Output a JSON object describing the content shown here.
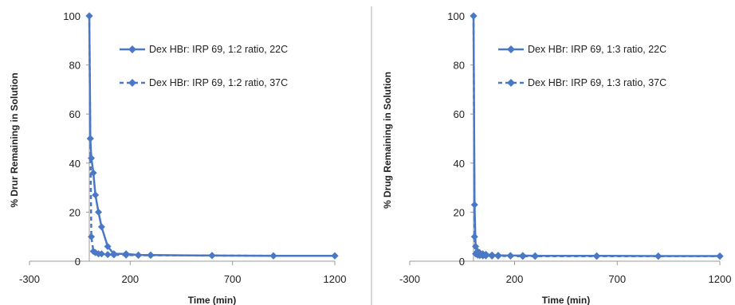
{
  "colors": {
    "series": "#4a78c4",
    "axis": "#999999",
    "divider": "#b0b0b0",
    "text": "#222222"
  },
  "chart_data": [
    {
      "type": "line",
      "xlabel": "Time (min)",
      "ylabel": "% Drur Remaining in Solution",
      "xlim": [
        -300,
        1200
      ],
      "ylim": [
        0,
        100
      ],
      "xticks": [
        -300,
        200,
        700,
        1200
      ],
      "yticks": [
        0,
        20,
        40,
        60,
        80,
        100
      ],
      "grid": false,
      "legend_position": "top-right",
      "series": [
        {
          "name": "Dex HBr: IRP 69, 1:2 ratio, 22C",
          "style": "solid",
          "x": [
            0,
            5,
            10,
            20,
            30,
            45,
            60,
            90,
            120,
            180,
            240,
            300,
            600,
            900,
            1200
          ],
          "y": [
            100,
            50,
            42,
            36,
            27,
            20,
            14,
            6,
            3,
            3,
            2.5,
            2.5,
            2.3,
            2.2,
            2.2
          ]
        },
        {
          "name": "Dex HBr: IRP 69, 1:2 ratio, 37C",
          "style": "dashed",
          "x": [
            0,
            5,
            10,
            20,
            30,
            45,
            60,
            90,
            120,
            180,
            240,
            300,
            600,
            900,
            1200
          ],
          "y": [
            100,
            50,
            10,
            4,
            3.5,
            3,
            3,
            2.7,
            2.6,
            2.5,
            2.4,
            2.4,
            2.3,
            2.2,
            2.2
          ]
        }
      ]
    },
    {
      "type": "line",
      "xlabel": "Time (min)",
      "ylabel": "% Drug Remaining in Solution",
      "xlim": [
        -300,
        1200
      ],
      "ylim": [
        0,
        100
      ],
      "xticks": [
        -300,
        200,
        700,
        1200
      ],
      "yticks": [
        0,
        20,
        40,
        60,
        80,
        100
      ],
      "grid": false,
      "legend_position": "top-right",
      "series": [
        {
          "name": "Dex HBr: IRP 69, 1:3 ratio, 22C",
          "style": "solid",
          "x": [
            0,
            5,
            10,
            20,
            30,
            45,
            60,
            90,
            120,
            180,
            240,
            300,
            600,
            900,
            1200
          ],
          "y": [
            100,
            23,
            6,
            4,
            3.5,
            3,
            2.8,
            2.5,
            2.4,
            2.3,
            2.3,
            2.2,
            2.2,
            2.1,
            2.1
          ]
        },
        {
          "name": "Dex HBr: IRP 69, 1:3 ratio, 37C",
          "style": "dashed",
          "x": [
            0,
            5,
            10,
            20,
            30,
            45,
            60,
            90,
            120,
            180,
            240,
            300,
            600,
            900,
            1200
          ],
          "y": [
            100,
            10,
            3,
            2.5,
            2.3,
            2.2,
            2.2,
            2.1,
            2.1,
            2.1,
            2.0,
            2.0,
            2.0,
            2.0,
            2.0
          ]
        }
      ]
    }
  ]
}
